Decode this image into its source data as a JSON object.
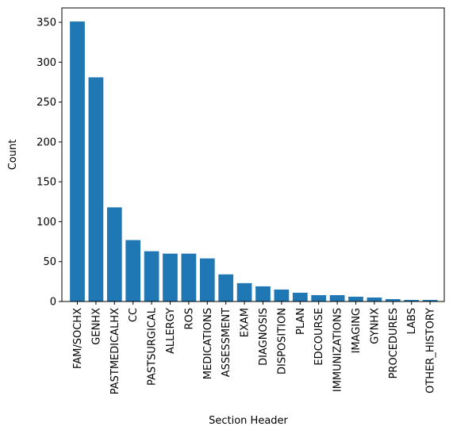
{
  "chart_data": {
    "type": "bar",
    "title": "",
    "xlabel": "Section Header",
    "ylabel": "Count",
    "ylim": [
      0,
      368
    ],
    "yticks": [
      0,
      50,
      100,
      150,
      200,
      250,
      300,
      350
    ],
    "grid": false,
    "bar_color": "#1f77b4",
    "categories": [
      "FAM/SOCHX",
      "GENHX",
      "PASTMEDICALHX",
      "CC",
      "PASTSURGICAL",
      "ALLERGY",
      "ROS",
      "MEDICATIONS",
      "ASSESSMENT",
      "EXAM",
      "DIAGNOSIS",
      "DISPOSITION",
      "PLAN",
      "EDCOURSE",
      "IMMUNIZATIONS",
      "IMAGING",
      "GYNHX",
      "PROCEDURES",
      "LABS",
      "OTHER_HISTORY"
    ],
    "values": [
      351,
      281,
      118,
      77,
      63,
      60,
      60,
      54,
      34,
      23,
      19,
      15,
      11,
      8,
      8,
      6,
      5,
      3,
      2,
      2
    ]
  }
}
